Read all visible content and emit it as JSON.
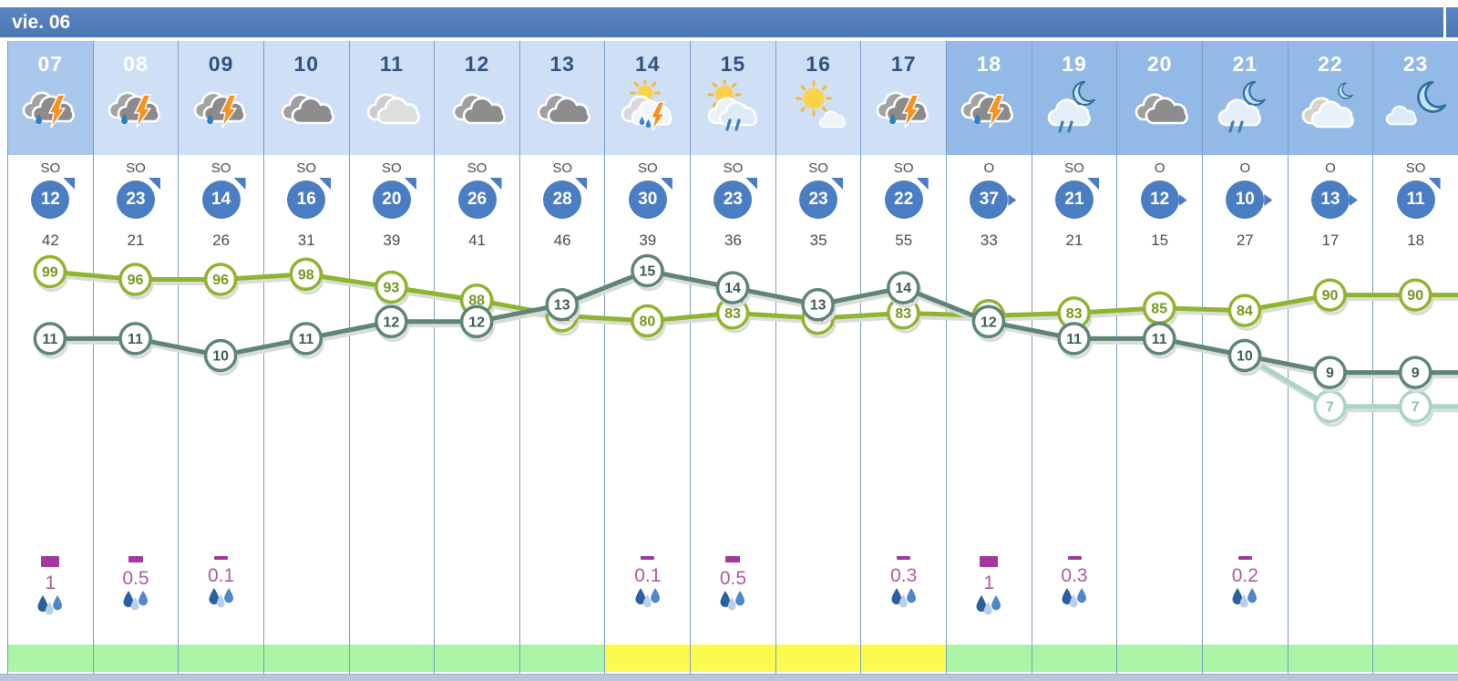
{
  "header": {
    "day_label": "vie. 06"
  },
  "columns": [
    {
      "hour": "07",
      "bg": "day-dark",
      "hour_style": "light",
      "icon": "storm-rain",
      "wind_dir": "SO",
      "wind_speed": "12",
      "arrow": "ne",
      "status": "green"
    },
    {
      "hour": "08",
      "bg": "day",
      "hour_style": "light",
      "icon": "storm-rain",
      "wind_dir": "SO",
      "wind_speed": "23",
      "arrow": "ne",
      "status": "green"
    },
    {
      "hour": "09",
      "bg": "day",
      "hour_style": "dark",
      "icon": "storm-rain",
      "wind_dir": "SO",
      "wind_speed": "14",
      "arrow": "ne",
      "status": "green"
    },
    {
      "hour": "10",
      "bg": "day",
      "hour_style": "dark",
      "icon": "cloudy",
      "wind_dir": "SO",
      "wind_speed": "16",
      "arrow": "ne",
      "status": "green"
    },
    {
      "hour": "11",
      "bg": "day",
      "hour_style": "dark",
      "icon": "cloudy-light",
      "wind_dir": "SO",
      "wind_speed": "20",
      "arrow": "ne",
      "status": "green"
    },
    {
      "hour": "12",
      "bg": "day",
      "hour_style": "dark",
      "icon": "cloudy",
      "wind_dir": "SO",
      "wind_speed": "26",
      "arrow": "ne",
      "status": "green"
    },
    {
      "hour": "13",
      "bg": "day",
      "hour_style": "dark",
      "icon": "cloudy",
      "wind_dir": "SO",
      "wind_speed": "28",
      "arrow": "ne",
      "status": "green"
    },
    {
      "hour": "14",
      "bg": "day",
      "hour_style": "dark",
      "icon": "sun-storm",
      "wind_dir": "SO",
      "wind_speed": "30",
      "arrow": "ne",
      "status": "yellow"
    },
    {
      "hour": "15",
      "bg": "day",
      "hour_style": "dark",
      "icon": "sun-rain",
      "wind_dir": "SO",
      "wind_speed": "23",
      "arrow": "ne",
      "status": "yellow"
    },
    {
      "hour": "16",
      "bg": "day",
      "hour_style": "dark",
      "icon": "sun-cloud",
      "wind_dir": "SO",
      "wind_speed": "23",
      "arrow": "ne",
      "status": "yellow"
    },
    {
      "hour": "17",
      "bg": "day",
      "hour_style": "dark",
      "icon": "storm-rain",
      "wind_dir": "SO",
      "wind_speed": "22",
      "arrow": "ne",
      "status": "yellow"
    },
    {
      "hour": "18",
      "bg": "night",
      "hour_style": "light",
      "icon": "storm-rain",
      "wind_dir": "O",
      "wind_speed": "37",
      "arrow": "e",
      "status": "green"
    },
    {
      "hour": "19",
      "bg": "night",
      "hour_style": "light",
      "icon": "moon-rain",
      "wind_dir": "SO",
      "wind_speed": "21",
      "arrow": "ne",
      "status": "green"
    },
    {
      "hour": "20",
      "bg": "night",
      "hour_style": "light",
      "icon": "cloudy",
      "wind_dir": "O",
      "wind_speed": "12",
      "arrow": "e",
      "status": "green"
    },
    {
      "hour": "21",
      "bg": "night",
      "hour_style": "light",
      "icon": "moon-rain",
      "wind_dir": "O",
      "wind_speed": "10",
      "arrow": "e",
      "status": "green"
    },
    {
      "hour": "22",
      "bg": "night",
      "hour_style": "light",
      "icon": "moon-cloud",
      "wind_dir": "O",
      "wind_speed": "13",
      "arrow": "e",
      "status": "green"
    },
    {
      "hour": "23",
      "bg": "night",
      "hour_style": "light",
      "icon": "moon-big",
      "wind_dir": "SO",
      "wind_speed": "11",
      "arrow": "ne",
      "status": "green"
    }
  ],
  "chart_data": {
    "type": "line",
    "hours": [
      "07",
      "08",
      "09",
      "10",
      "11",
      "12",
      "13",
      "14",
      "15",
      "16",
      "17",
      "18",
      "19",
      "20",
      "21",
      "22",
      "23"
    ],
    "series": [
      {
        "name": "humidity",
        "color": "#8fb42e",
        "text_color": "#75991f",
        "values": [
          99,
          96,
          96,
          98,
          93,
          88,
          82,
          80,
          83,
          81,
          83,
          82,
          83,
          85,
          84,
          90,
          90
        ]
      },
      {
        "name": "feels_like",
        "color": "#a9d4c7",
        "text_color": "#93c2b4",
        "values": [
          null,
          null,
          null,
          null,
          null,
          null,
          null,
          null,
          null,
          null,
          null,
          null,
          null,
          null,
          10,
          7,
          7
        ]
      },
      {
        "name": "temperature",
        "color": "#5f8478",
        "text_color": "#3f5f56",
        "values": [
          11,
          11,
          10,
          11,
          12,
          12,
          13,
          15,
          14,
          13,
          14,
          12,
          11,
          11,
          10,
          9,
          9
        ]
      }
    ],
    "gusts": [
      42,
      21,
      26,
      31,
      39,
      41,
      46,
      39,
      36,
      35,
      55,
      33,
      21,
      15,
      27,
      17,
      18
    ],
    "precipitation_mm": [
      1,
      0.5,
      0.1,
      null,
      null,
      null,
      null,
      0.1,
      0.5,
      null,
      0.3,
      1,
      0.3,
      null,
      0.2,
      null,
      null
    ],
    "legend_position": "none",
    "grid": "vertical-only"
  }
}
